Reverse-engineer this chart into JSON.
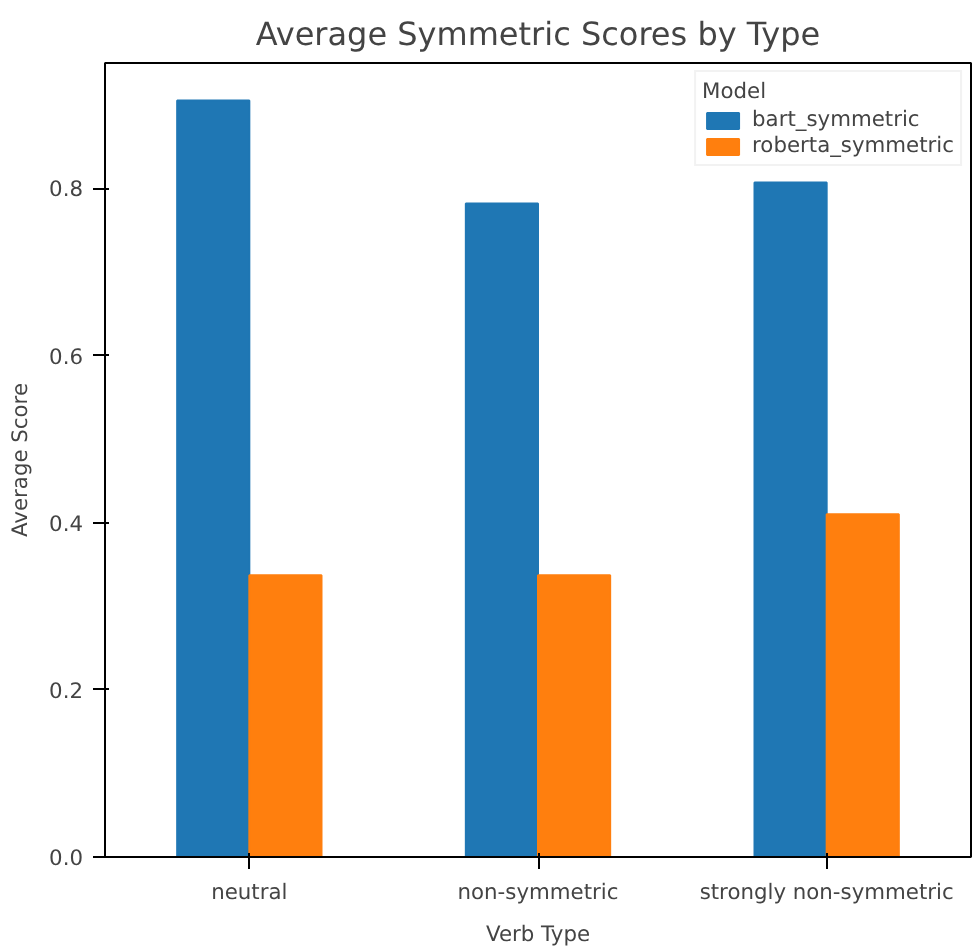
{
  "chart_data": {
    "type": "bar",
    "title": "Average Symmetric Scores by Type",
    "xlabel": "Verb Type",
    "ylabel": "Average Score",
    "legend_title": "Model",
    "categories": [
      "neutral",
      "non-symmetric",
      "strongly non-symmetric"
    ],
    "series": [
      {
        "name": "bart_symmetric",
        "color": "#1f77b4",
        "values": [
          0.905,
          0.782,
          0.807
        ]
      },
      {
        "name": "roberta_symmetric",
        "color": "#ff7f0e",
        "values": [
          0.337,
          0.337,
          0.41
        ]
      }
    ],
    "ylim": [
      0,
      0.95
    ],
    "yticks": [
      {
        "value": 0,
        "label": "0.0"
      },
      {
        "value": 0.2,
        "label": "0.2"
      },
      {
        "value": 0.4,
        "label": "0.4"
      },
      {
        "value": 0.6,
        "label": "0.6"
      },
      {
        "value": 0.8,
        "label": "0.8"
      }
    ],
    "grid": false,
    "legend": "top right"
  }
}
